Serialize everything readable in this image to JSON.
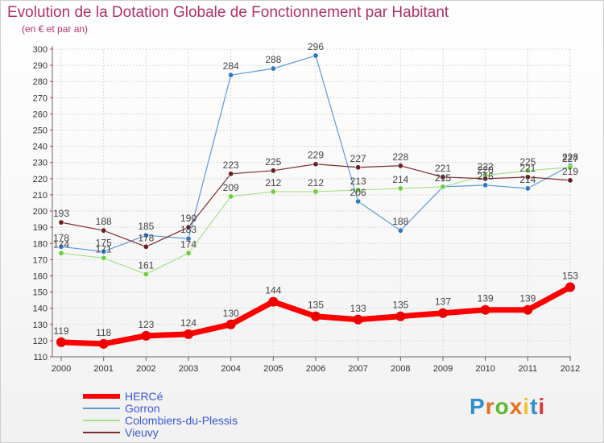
{
  "title": "Evolution de la Dotation Globale de Fonctionnement par Habitant",
  "subtitle": "(en € et par an)",
  "logo": "Proxiti",
  "colors": {
    "accent": "#b0306a",
    "legend_text": "#3b57d6",
    "grid": "#d8d8d8",
    "logo_letters": [
      "#2f8fd0",
      "#e8711e",
      "#5cb830",
      "#e8711e",
      "#f2c12c",
      "#2f8fd0",
      "#e93232"
    ]
  },
  "chart_data": {
    "type": "line",
    "categories": [
      "2000",
      "2001",
      "2002",
      "2003",
      "2004",
      "2005",
      "2006",
      "2007",
      "2008",
      "2009",
      "2010",
      "2011",
      "2012"
    ],
    "ylim": [
      110,
      300
    ],
    "yticks": [
      110,
      120,
      130,
      140,
      150,
      160,
      170,
      180,
      190,
      200,
      210,
      220,
      230,
      240,
      250,
      260,
      270,
      280,
      290,
      300
    ],
    "grid": true,
    "legend_position": "bottom-left",
    "series": [
      {
        "name": "Gorron",
        "color": "#5b9bd5",
        "marker": "#2e78c2",
        "width": 1.2,
        "values": [
          178,
          175,
          185,
          183,
          284,
          288,
          296,
          206,
          188,
          215,
          216,
          214,
          228
        ],
        "labels": [
          "178",
          "175",
          "185",
          "183",
          "284",
          "288",
          "296",
          "206",
          "188",
          "215",
          "216",
          "214",
          "228"
        ]
      },
      {
        "name": "Colombiers-du-Plessis",
        "color": "#a8e08a",
        "marker": "#6ccf3c",
        "width": 1.2,
        "values": [
          174,
          171,
          161,
          174,
          209,
          212,
          212,
          213,
          214,
          215,
          222,
          225,
          227
        ],
        "labels": [
          "174",
          "171",
          "161",
          "174",
          "209",
          "212",
          "212",
          "213",
          "214",
          "215",
          "222",
          "225",
          "227"
        ]
      },
      {
        "name": "Vieuvy",
        "color": "#7b2c2c",
        "marker": "#6b1f1f",
        "width": 1.2,
        "values": [
          193,
          188,
          178,
          190,
          223,
          225,
          229,
          227,
          228,
          221,
          220,
          221,
          219
        ],
        "labels": [
          "193",
          "188",
          "178",
          "190",
          "223",
          "225",
          "229",
          "227",
          "228",
          "221",
          "220",
          "221",
          "219"
        ]
      },
      {
        "name": "HERCé",
        "color": "#ff0000",
        "marker": "#ee0000",
        "width": 7,
        "values": [
          119,
          118,
          123,
          124,
          130,
          144,
          135,
          133,
          135,
          137,
          139,
          139,
          153
        ],
        "labels": [
          "119",
          "118",
          "123",
          "124",
          "130",
          "144",
          "135",
          "133",
          "135",
          "137",
          "139",
          "139",
          "153"
        ]
      }
    ]
  }
}
